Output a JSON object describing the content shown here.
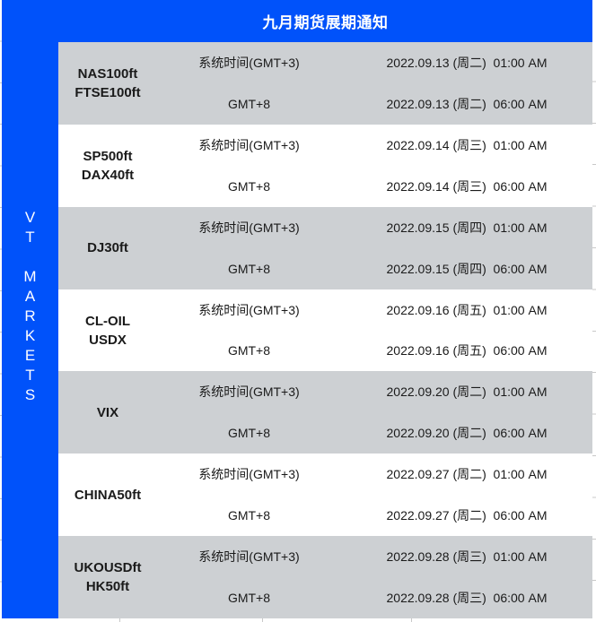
{
  "title": "九月期货展期通知",
  "sidebar": {
    "brand": "VT MARKETS"
  },
  "colors": {
    "accent_blue": "#0052fa",
    "row_gray": "#cdd0d3",
    "row_white": "#ffffff",
    "title_text": "#ffffff",
    "body_text": "#1a1a1a"
  },
  "table": {
    "rows": [
      {
        "instruments": [
          "NAS100ft",
          "FTSE100ft"
        ],
        "schedule": [
          {
            "zone": "系统时间(GMT+3)",
            "datetime": "2022.09.13 (周二)  01:00 AM"
          },
          {
            "zone": "GMT+8",
            "datetime": "2022.09.13 (周二)  06:00 AM"
          }
        ]
      },
      {
        "instruments": [
          "SP500ft",
          "DAX40ft"
        ],
        "schedule": [
          {
            "zone": "系统时间(GMT+3)",
            "datetime": "2022.09.14 (周三)  01:00 AM"
          },
          {
            "zone": "GMT+8",
            "datetime": "2022.09.14 (周三)  06:00 AM"
          }
        ]
      },
      {
        "instruments": [
          "DJ30ft"
        ],
        "schedule": [
          {
            "zone": "系统时间(GMT+3)",
            "datetime": "2022.09.15 (周四)  01:00 AM"
          },
          {
            "zone": "GMT+8",
            "datetime": "2022.09.15 (周四)  06:00 AM"
          }
        ]
      },
      {
        "instruments": [
          "CL-OIL",
          "USDX"
        ],
        "schedule": [
          {
            "zone": "系统时间(GMT+3)",
            "datetime": "2022.09.16 (周五)  01:00 AM"
          },
          {
            "zone": "GMT+8",
            "datetime": "2022.09.16 (周五)  06:00 AM"
          }
        ]
      },
      {
        "instruments": [
          "VIX"
        ],
        "schedule": [
          {
            "zone": "系统时间(GMT+3)",
            "datetime": "2022.09.20 (周二)  01:00 AM"
          },
          {
            "zone": "GMT+8",
            "datetime": "2022.09.20 (周二)  06:00 AM"
          }
        ]
      },
      {
        "instruments": [
          "CHINA50ft"
        ],
        "schedule": [
          {
            "zone": "系统时间(GMT+3)",
            "datetime": "2022.09.27 (周二)  01:00 AM"
          },
          {
            "zone": "GMT+8",
            "datetime": "2022.09.27 (周二)  06:00 AM"
          }
        ]
      },
      {
        "instruments": [
          "UKOUSDft",
          "HK50ft"
        ],
        "schedule": [
          {
            "zone": "系统时间(GMT+3)",
            "datetime": "2022.09.28 (周三)  01:00 AM"
          },
          {
            "zone": "GMT+8",
            "datetime": "2022.09.28 (周三)  06:00 AM"
          }
        ]
      }
    ]
  }
}
